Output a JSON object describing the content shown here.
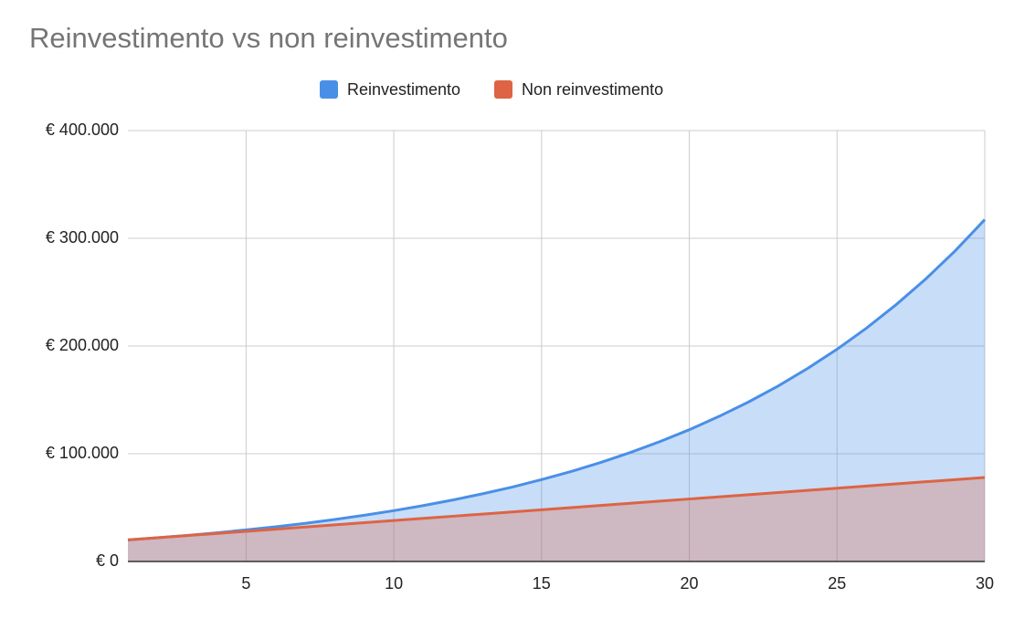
{
  "chart_data": {
    "type": "area",
    "title": "Reinvestimento vs non reinvestimento",
    "x": [
      1,
      2,
      3,
      4,
      5,
      6,
      7,
      8,
      9,
      10,
      11,
      12,
      13,
      14,
      15,
      16,
      17,
      18,
      19,
      20,
      21,
      22,
      23,
      24,
      25,
      26,
      27,
      28,
      29,
      30
    ],
    "series": [
      {
        "name": "Reinvestimento",
        "color": "#4a8fe7",
        "values": [
          20000,
          22000,
          24200,
          26600,
          29300,
          32200,
          35400,
          39000,
          42900,
          47200,
          51900,
          57100,
          62800,
          69000,
          76000,
          83500,
          91900,
          101100,
          111200,
          122300,
          134600,
          148000,
          162800,
          179100,
          197000,
          216700,
          238400,
          262200,
          288400,
          317300
        ]
      },
      {
        "name": "Non reinvestimento",
        "color": "#dd6444",
        "values": [
          20000,
          22000,
          24000,
          26000,
          28000,
          30000,
          32000,
          34000,
          36000,
          38000,
          40000,
          42000,
          44000,
          46000,
          48000,
          50000,
          52000,
          54000,
          56000,
          58000,
          60000,
          62000,
          64000,
          66000,
          68000,
          70000,
          72000,
          74000,
          76000,
          78000
        ]
      }
    ],
    "xlim": [
      1,
      30
    ],
    "xticks": [
      5,
      10,
      15,
      20,
      25,
      30
    ],
    "ylim": [
      0,
      400000
    ],
    "yticks": [
      {
        "value": 0,
        "label": "€ 0"
      },
      {
        "value": 100000,
        "label": "€ 100.000"
      },
      {
        "value": 200000,
        "label": "€ 200.000"
      },
      {
        "value": 300000,
        "label": "€ 300.000"
      },
      {
        "value": 400000,
        "label": "€ 400.000"
      }
    ],
    "grid": true,
    "legend": "top"
  }
}
